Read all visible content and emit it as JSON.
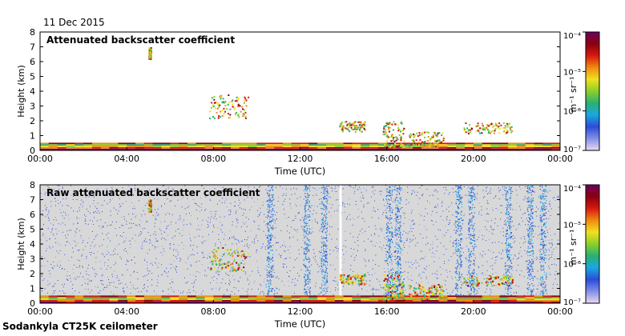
{
  "header": {
    "date": "11 Dec 2015"
  },
  "footer": {
    "instrument": "Sodankyla CT25K ceilometer"
  },
  "colors": {
    "noise_background": "#d8d8d8",
    "colorbar": [
      "#ecd8f0",
      "#8090e8",
      "#2a4cd8",
      "#1aa8e0",
      "#2ab070",
      "#8ad02a",
      "#f0e020",
      "#f08a10",
      "#d81810",
      "#8a0010",
      "#700060"
    ]
  },
  "chart_data": [
    {
      "type": "heatmap",
      "title": "Attenuated backscatter coefficient",
      "xlabel": "Time (UTC)",
      "ylabel": "Height (km)",
      "x_ticks": [
        "00:00",
        "04:00",
        "08:00",
        "12:00",
        "16:00",
        "20:00",
        "00:00"
      ],
      "x_range_hours": [
        0,
        24
      ],
      "y_ticks": [
        0,
        1,
        2,
        3,
        4,
        5,
        6,
        7,
        8
      ],
      "ylim_km": [
        0,
        8
      ],
      "grid": false,
      "noise_shown": false,
      "colorbar": {
        "scale": "log",
        "range": [
          1e-07,
          0.0001
        ],
        "ticks": [
          "10⁻⁷",
          "10⁻⁶",
          "10⁻⁵",
          "10⁻⁴"
        ],
        "unit": "m⁻¹ sr⁻¹"
      },
      "features": [
        {
          "t0": 0,
          "t1": 24,
          "h0": 0.0,
          "h1": 0.5,
          "level": "mixed surface layer"
        },
        {
          "t0": 5.0,
          "t1": 5.1,
          "h0": 6.2,
          "h1": 7.0,
          "level": "cloud"
        },
        {
          "t0": 7.8,
          "t1": 9.6,
          "h0": 2.2,
          "h1": 3.8,
          "level": "cloud"
        },
        {
          "t0": 13.8,
          "t1": 15.0,
          "h0": 1.3,
          "h1": 2.0,
          "level": "cloud"
        },
        {
          "t0": 15.8,
          "t1": 16.8,
          "h0": 0.2,
          "h1": 2.0,
          "level": "cloud"
        },
        {
          "t0": 17.0,
          "t1": 18.6,
          "h0": 0.3,
          "h1": 1.3,
          "level": "cloud"
        },
        {
          "t0": 19.5,
          "t1": 21.8,
          "h0": 1.2,
          "h1": 1.9,
          "level": "cloud"
        }
      ]
    },
    {
      "type": "heatmap",
      "title": "Raw attenuated backscatter coefficient",
      "xlabel": "Time (UTC)",
      "ylabel": "Height (km)",
      "x_ticks": [
        "00:00",
        "04:00",
        "08:00",
        "12:00",
        "16:00",
        "20:00",
        "00:00"
      ],
      "x_range_hours": [
        0,
        24
      ],
      "y_ticks": [
        0,
        1,
        2,
        3,
        4,
        5,
        6,
        7,
        8
      ],
      "ylim_km": [
        0,
        8
      ],
      "grid": false,
      "noise_shown": true,
      "colorbar": {
        "scale": "log",
        "range": [
          1e-07,
          0.0001
        ],
        "ticks": [
          "10⁻⁷",
          "10⁻⁶",
          "10⁻⁵",
          "10⁻⁴"
        ],
        "unit": "m⁻¹ sr⁻¹"
      },
      "noise_columns_hours": [
        10.6,
        12.3,
        13.1,
        16.1,
        16.5,
        19.3,
        19.9,
        21.6,
        22.6,
        23.2
      ],
      "gap_hours": [
        13.85
      ]
    }
  ]
}
